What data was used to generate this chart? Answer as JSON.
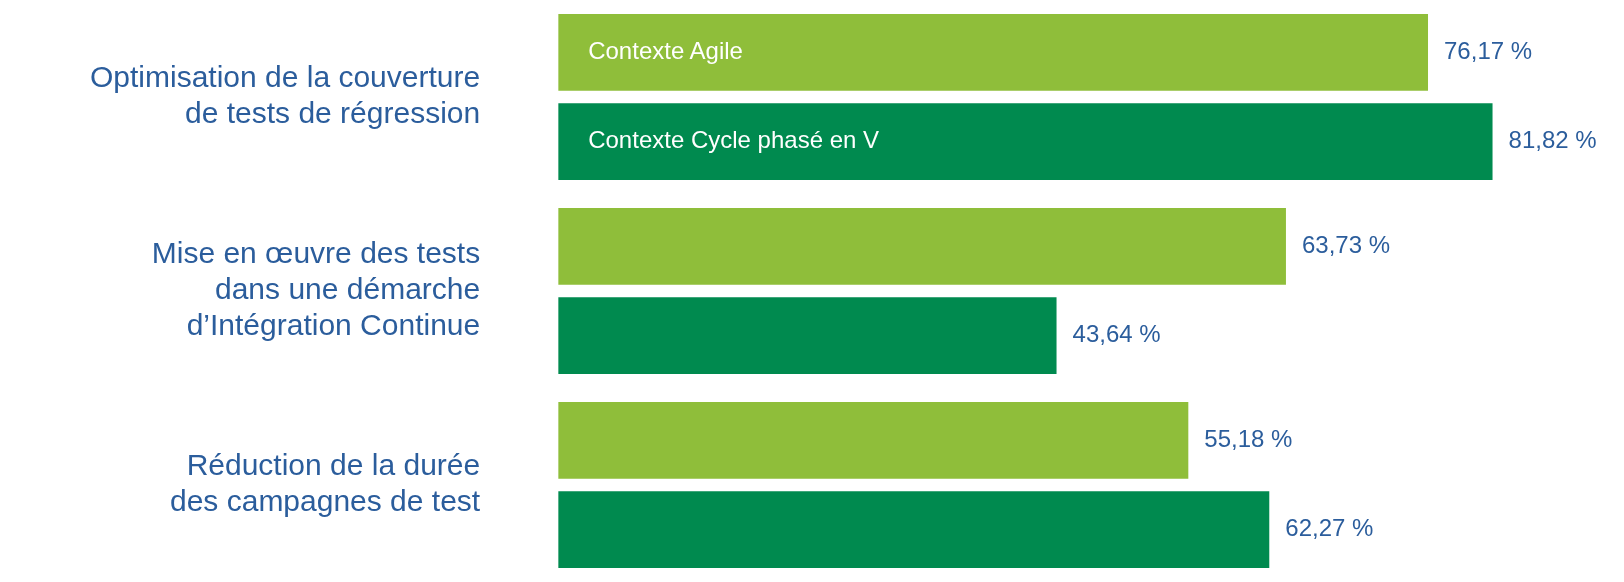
{
  "chart_data": {
    "type": "bar",
    "orientation": "horizontal",
    "legend": false,
    "data_labels": false,
    "categories": [
      "Optimisation de la couverture\nde tests de régression",
      "Mise en œuvre des tests\ndans une démarche\nd’Intégration Continue",
      "Réduction de la durée\ndes campagnes de test"
    ],
    "series": [
      {
        "name": "Contexte Agile",
        "color": "#8fbe3a",
        "values": [
          76.17,
          63.73,
          55.18
        ],
        "value_labels": [
          "76,17 %",
          "63,73 %",
          "55,18 %"
        ]
      },
      {
        "name": "Contexte Cycle phasé en V",
        "color": "#008a4f",
        "values": [
          81.82,
          43.64,
          62.27
        ],
        "value_labels": [
          "81,82 %",
          "43,64 %",
          "62,27 %"
        ]
      }
    ]
  }
}
